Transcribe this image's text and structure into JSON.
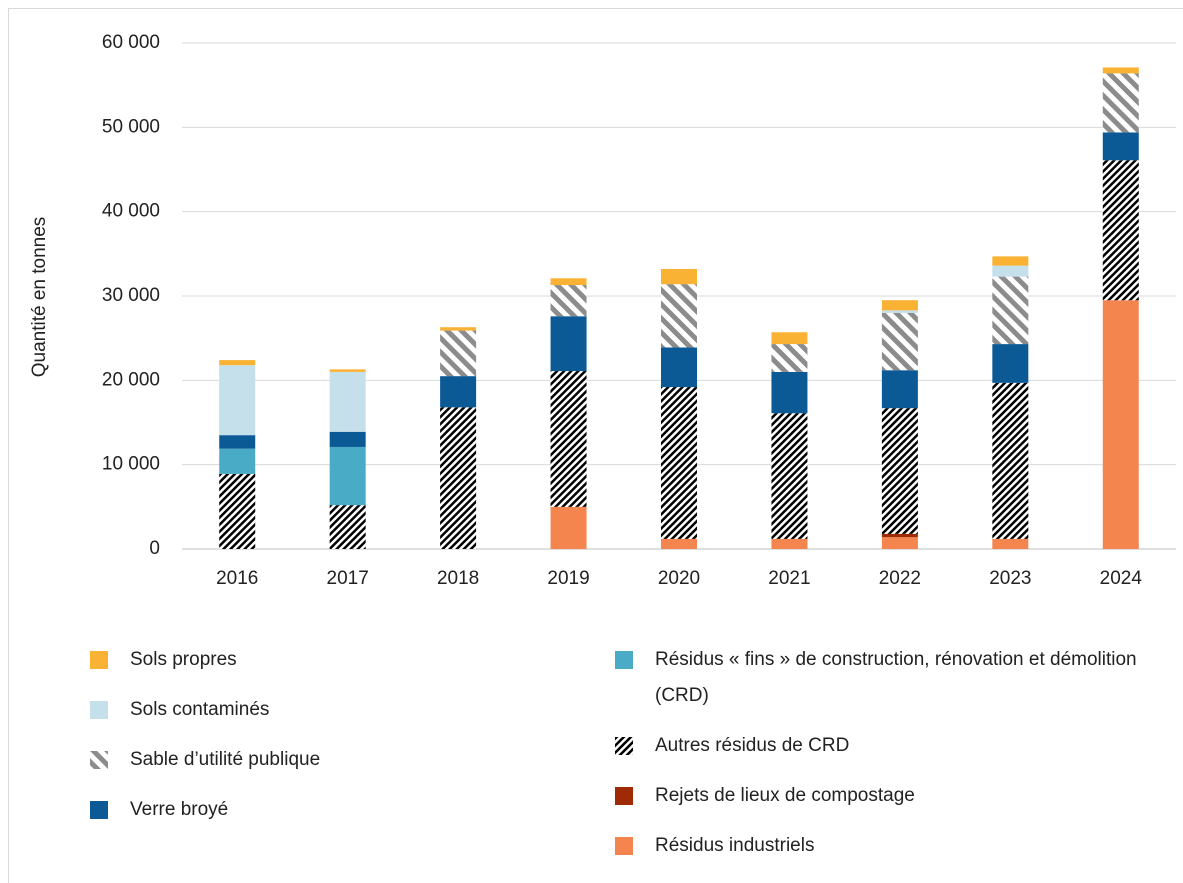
{
  "chart_data": {
    "type": "stacked-bar",
    "ylabel": "Quantité en tonnes",
    "categories": [
      "2016",
      "2017",
      "2018",
      "2019",
      "2020",
      "2021",
      "2022",
      "2023",
      "2024"
    ],
    "ylim": [
      0,
      60000
    ],
    "yticks": [
      0,
      {
        "value": 10000,
        "label": "10 000"
      },
      {
        "value": 20000,
        "label": "20 000"
      },
      {
        "value": 30000,
        "label": "30 000"
      },
      {
        "value": 40000,
        "label": "40 000"
      },
      {
        "value": 50000,
        "label": "50 000"
      },
      {
        "value": 60000,
        "label": "60 000"
      }
    ],
    "grid": true,
    "series": [
      {
        "name": "Sols propres",
        "color": "#f9b233",
        "values": [
          600,
          300,
          400,
          800,
          1800,
          1400,
          1200,
          1100,
          700
        ]
      },
      {
        "name": "Sols contaminés",
        "color": "#c5dfeb",
        "values": [
          8300,
          7100,
          0,
          0,
          0,
          0,
          300,
          1300,
          0
        ]
      },
      {
        "name": "Sable d’utilité publique",
        "color": "#8c8c8c",
        "pattern": "diagonal",
        "values": [
          0,
          0,
          5400,
          3700,
          7500,
          3300,
          6800,
          8000,
          7000
        ]
      },
      {
        "name": "Verre broyé",
        "color": "#0b5a96",
        "values": [
          1600,
          1800,
          3700,
          6500,
          4700,
          4900,
          4500,
          4600,
          3300
        ]
      },
      {
        "name": "Résidus « fins » de construction, rénovation et démolition (CRD)",
        "color": "#4aabc6",
        "values": [
          3000,
          6900,
          0,
          0,
          0,
          0,
          0,
          0,
          0
        ]
      },
      {
        "name": "Autres résidus de CRD",
        "color": "#000000",
        "pattern": "checker",
        "values": [
          8900,
          5200,
          16800,
          16100,
          18000,
          14900,
          14900,
          18500,
          16600
        ]
      },
      {
        "name": "Rejets de lieux de compostage",
        "color": "#9e2a06",
        "values": [
          0,
          0,
          0,
          0,
          0,
          0,
          400,
          0,
          0
        ]
      },
      {
        "name": "Résidus industriels",
        "color": "#f4854e",
        "values": [
          0,
          0,
          0,
          5000,
          1200,
          1200,
          1400,
          1200,
          29500
        ]
      }
    ]
  }
}
